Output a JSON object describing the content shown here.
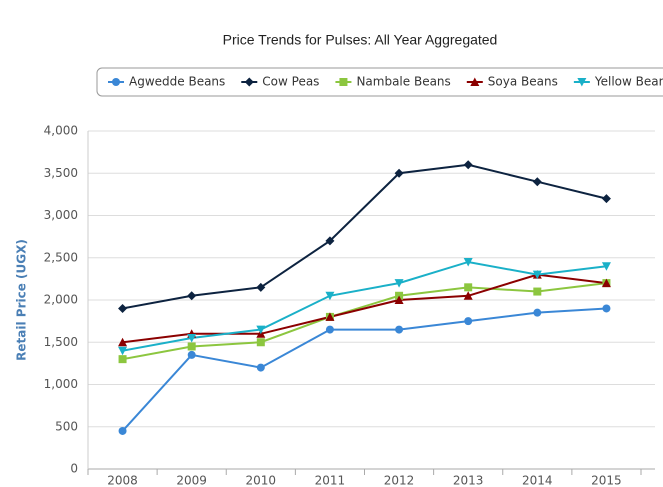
{
  "chart_data": {
    "type": "line",
    "title": "Price Trends for Pulses: All Year Aggregated",
    "y_label": "Retail Price (UGX)",
    "categories": [
      "2008",
      "2009",
      "2010",
      "2011",
      "2012",
      "2013",
      "2014",
      "2015"
    ],
    "series": [
      {
        "name": "Agwedde Beans",
        "color": "#3a87d6",
        "marker": "circle",
        "values": [
          450,
          1350,
          1200,
          1650,
          1650,
          1750,
          1850,
          1900
        ]
      },
      {
        "name": "Cow Peas",
        "color": "#0d2340",
        "marker": "diamond",
        "values": [
          1900,
          2050,
          2150,
          2700,
          3500,
          3600,
          3400,
          3200
        ]
      },
      {
        "name": "Nambale Beans",
        "color": "#8cc63f",
        "marker": "square",
        "values": [
          1300,
          1450,
          1500,
          1800,
          2050,
          2150,
          2100,
          2200
        ]
      },
      {
        "name": "Soya Beans",
        "color": "#8b0000",
        "marker": "triangle",
        "values": [
          1500,
          1600,
          1600,
          1800,
          2000,
          2050,
          2300,
          2200
        ]
      },
      {
        "name": "Yellow Beans",
        "color": "#1ab0c8",
        "marker": "triangle-down",
        "values": [
          1400,
          1550,
          1650,
          2050,
          2200,
          2450,
          2300,
          2400
        ]
      }
    ],
    "ylim": [
      0,
      4000
    ],
    "yticks": [
      0,
      500,
      {
        "value": 1000,
        "label": "1,000"
      },
      {
        "value": 1500,
        "label": "1,500"
      },
      {
        "value": 2000,
        "label": "2,000"
      },
      {
        "value": 2500,
        "label": "2,500"
      },
      {
        "value": 3000,
        "label": "3,000"
      },
      {
        "value": 3500,
        "label": "3,500"
      },
      {
        "value": 4000,
        "label": "4,000"
      }
    ],
    "grid": true,
    "legend": "top"
  }
}
